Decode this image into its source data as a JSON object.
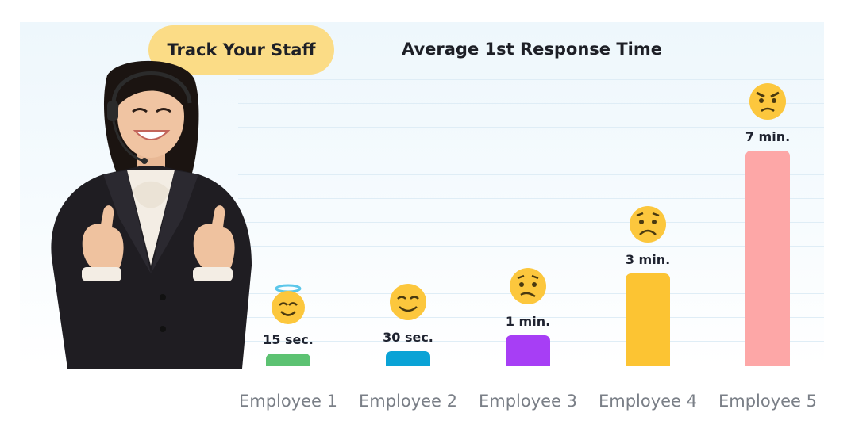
{
  "badge": {
    "label": "Track Your Staff"
  },
  "chart_data": {
    "type": "bar",
    "title": "Average 1st Response Time",
    "xlabel": "",
    "ylabel": "",
    "categories": [
      "Employee 1",
      "Employee 2",
      "Employee 3",
      "Employee 4",
      "Employee 5"
    ],
    "values": [
      0.25,
      0.5,
      1,
      3,
      7
    ],
    "value_labels": [
      "15 sec.",
      "30 sec.",
      "1 min.",
      "3 min.",
      "7 min."
    ],
    "unit": "min",
    "ylim": [
      0,
      7
    ],
    "grid": true,
    "legend": "none",
    "colors": [
      "#5cc272",
      "#0aa3d6",
      "#a73ef5",
      "#fcc433",
      "#fda7a7"
    ],
    "faces": [
      "angel-face-icon",
      "smiling-face-icon",
      "confused-face-icon",
      "frowning-face-icon",
      "angry-face-icon"
    ]
  },
  "colors": {
    "badge_bg": "#fbdc86",
    "face_yellow": "#fcc73d",
    "x_label": "#7a7f87",
    "title": "#1d1f26"
  },
  "illustration": {
    "subject": "support-agent-thumbs-up"
  }
}
